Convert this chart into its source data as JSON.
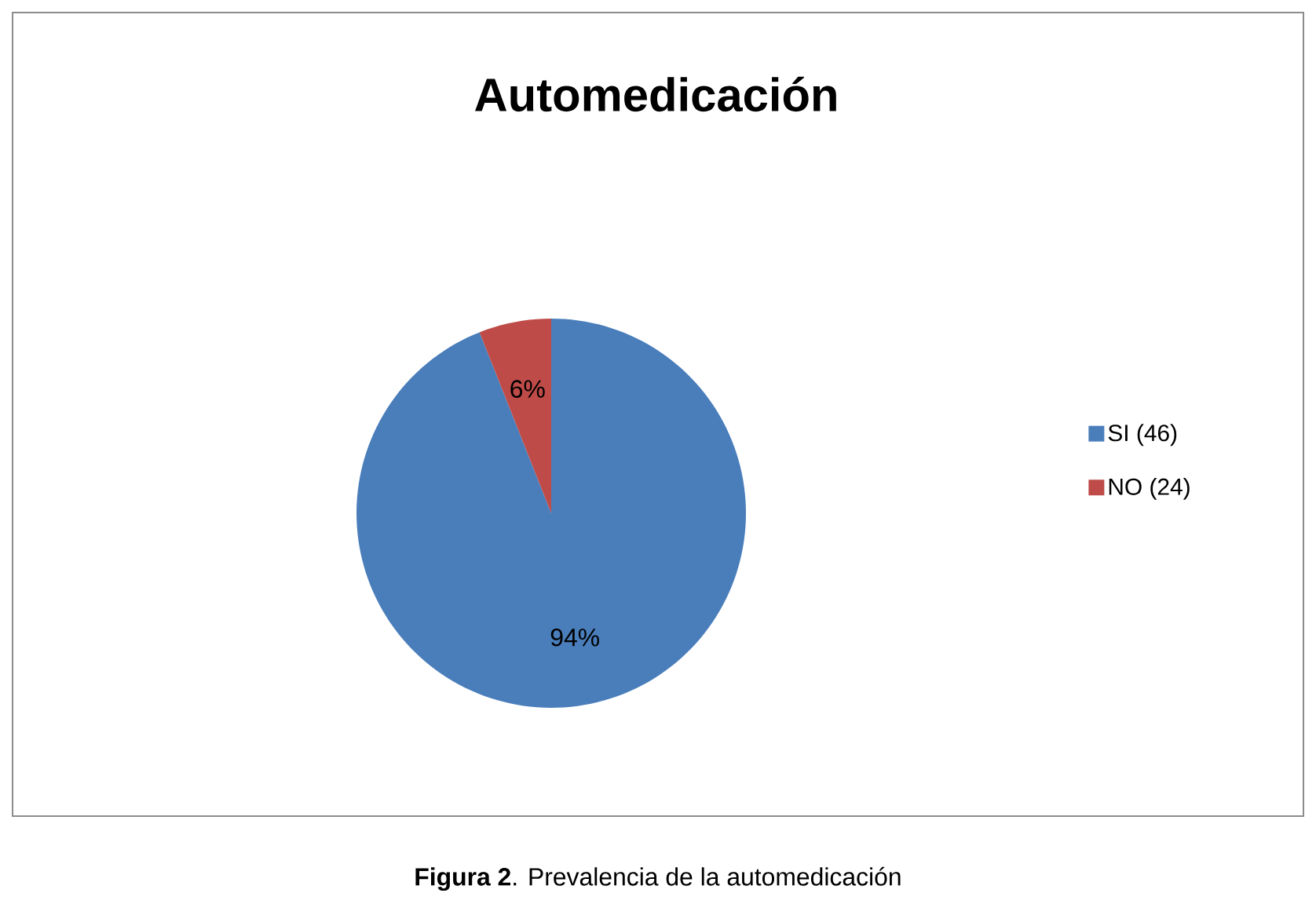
{
  "chart_data": {
    "type": "pie",
    "title": "Automedicación",
    "categories": [
      "SI (46)",
      "NO (24)"
    ],
    "values": [
      94,
      6
    ],
    "colors": [
      "#4a7ebb",
      "#be4b48"
    ],
    "value_labels": [
      "94%",
      "6%"
    ],
    "legend": "right",
    "annotations": [
      "**Figura 2**. Prevalencia de la automedicación"
    ]
  }
}
